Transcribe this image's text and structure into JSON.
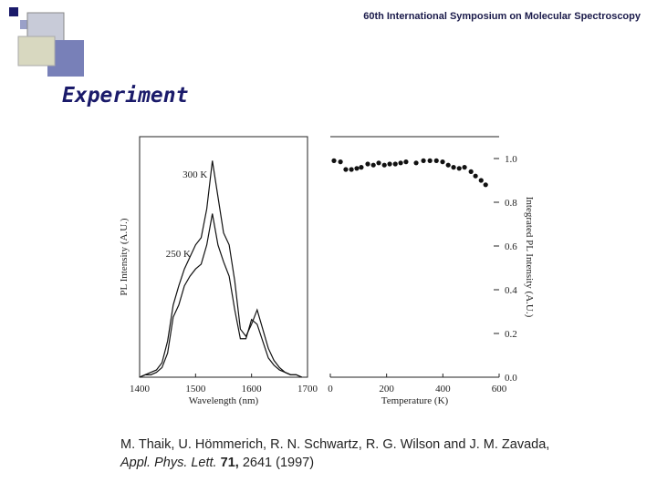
{
  "header": "60th International Symposium on Molecular Spectroscopy",
  "title": "Experiment",
  "citation": {
    "authors": "M. Thaik, U. Hömmerich, R. N. Schwartz, R. G. Wilson and J. M. Zavada,",
    "journal": "Appl. Phys. Lett.",
    "volume": "71,",
    "pages": "2641 (1997)"
  },
  "chart_data": [
    {
      "type": "line",
      "xlabel": "Wavelength (nm)",
      "ylabel": "PL Intensity (A.U.)",
      "x": [
        1400,
        1410,
        1420,
        1430,
        1440,
        1450,
        1460,
        1470,
        1480,
        1490,
        1500,
        1510,
        1520,
        1530,
        1540,
        1550,
        1560,
        1570,
        1580,
        1590,
        1600,
        1610,
        1620,
        1630,
        1640,
        1650,
        1660,
        1670,
        1680,
        1690
      ],
      "series": [
        {
          "name": "300 K",
          "color": "#111111",
          "values": [
            0,
            0.01,
            0.02,
            0.03,
            0.06,
            0.15,
            0.3,
            0.38,
            0.45,
            0.5,
            0.55,
            0.58,
            0.7,
            0.9,
            0.75,
            0.6,
            0.55,
            0.4,
            0.2,
            0.17,
            0.22,
            0.28,
            0.2,
            0.12,
            0.07,
            0.04,
            0.02,
            0.01,
            0.01,
            0
          ]
        },
        {
          "name": "250 K",
          "color": "#111111",
          "values": [
            0,
            0.01,
            0.01,
            0.02,
            0.04,
            0.1,
            0.25,
            0.3,
            0.38,
            0.42,
            0.45,
            0.47,
            0.55,
            0.68,
            0.55,
            0.48,
            0.42,
            0.28,
            0.16,
            0.16,
            0.24,
            0.22,
            0.15,
            0.08,
            0.05,
            0.03,
            0.02,
            0.01,
            0.01,
            0
          ]
        }
      ],
      "xlim": [
        1400,
        1700
      ],
      "xticks": [
        1400,
        1500,
        1600,
        1700
      ],
      "ylim": [
        0,
        1
      ]
    },
    {
      "type": "scatter",
      "xlabel": "Temperature (K)",
      "ylabel": "Integrated PL Intensity (A.U.)",
      "color": "#111111",
      "x": [
        13,
        36,
        55,
        75,
        94,
        110,
        133,
        153,
        172,
        192,
        211,
        231,
        250,
        269,
        305,
        331,
        354,
        377,
        399,
        419,
        438,
        458,
        477,
        500,
        516,
        536,
        552
      ],
      "values": [
        0.99,
        0.985,
        0.95,
        0.95,
        0.955,
        0.96,
        0.975,
        0.97,
        0.98,
        0.97,
        0.975,
        0.975,
        0.98,
        0.985,
        0.98,
        0.99,
        0.99,
        0.99,
        0.985,
        0.97,
        0.96,
        0.955,
        0.96,
        0.94,
        0.92,
        0.9,
        0.88
      ],
      "xlim": [
        0,
        600
      ],
      "xticks": [
        0,
        200,
        400,
        600
      ],
      "ylim": [
        0,
        1.1
      ],
      "yticks": [
        {
          "value": 0,
          "label": "0.0"
        },
        0.2,
        0.4,
        0.6,
        0.8,
        {
          "value": 1,
          "label": "1.0"
        }
      ],
      "y_axis_side": "right"
    }
  ]
}
